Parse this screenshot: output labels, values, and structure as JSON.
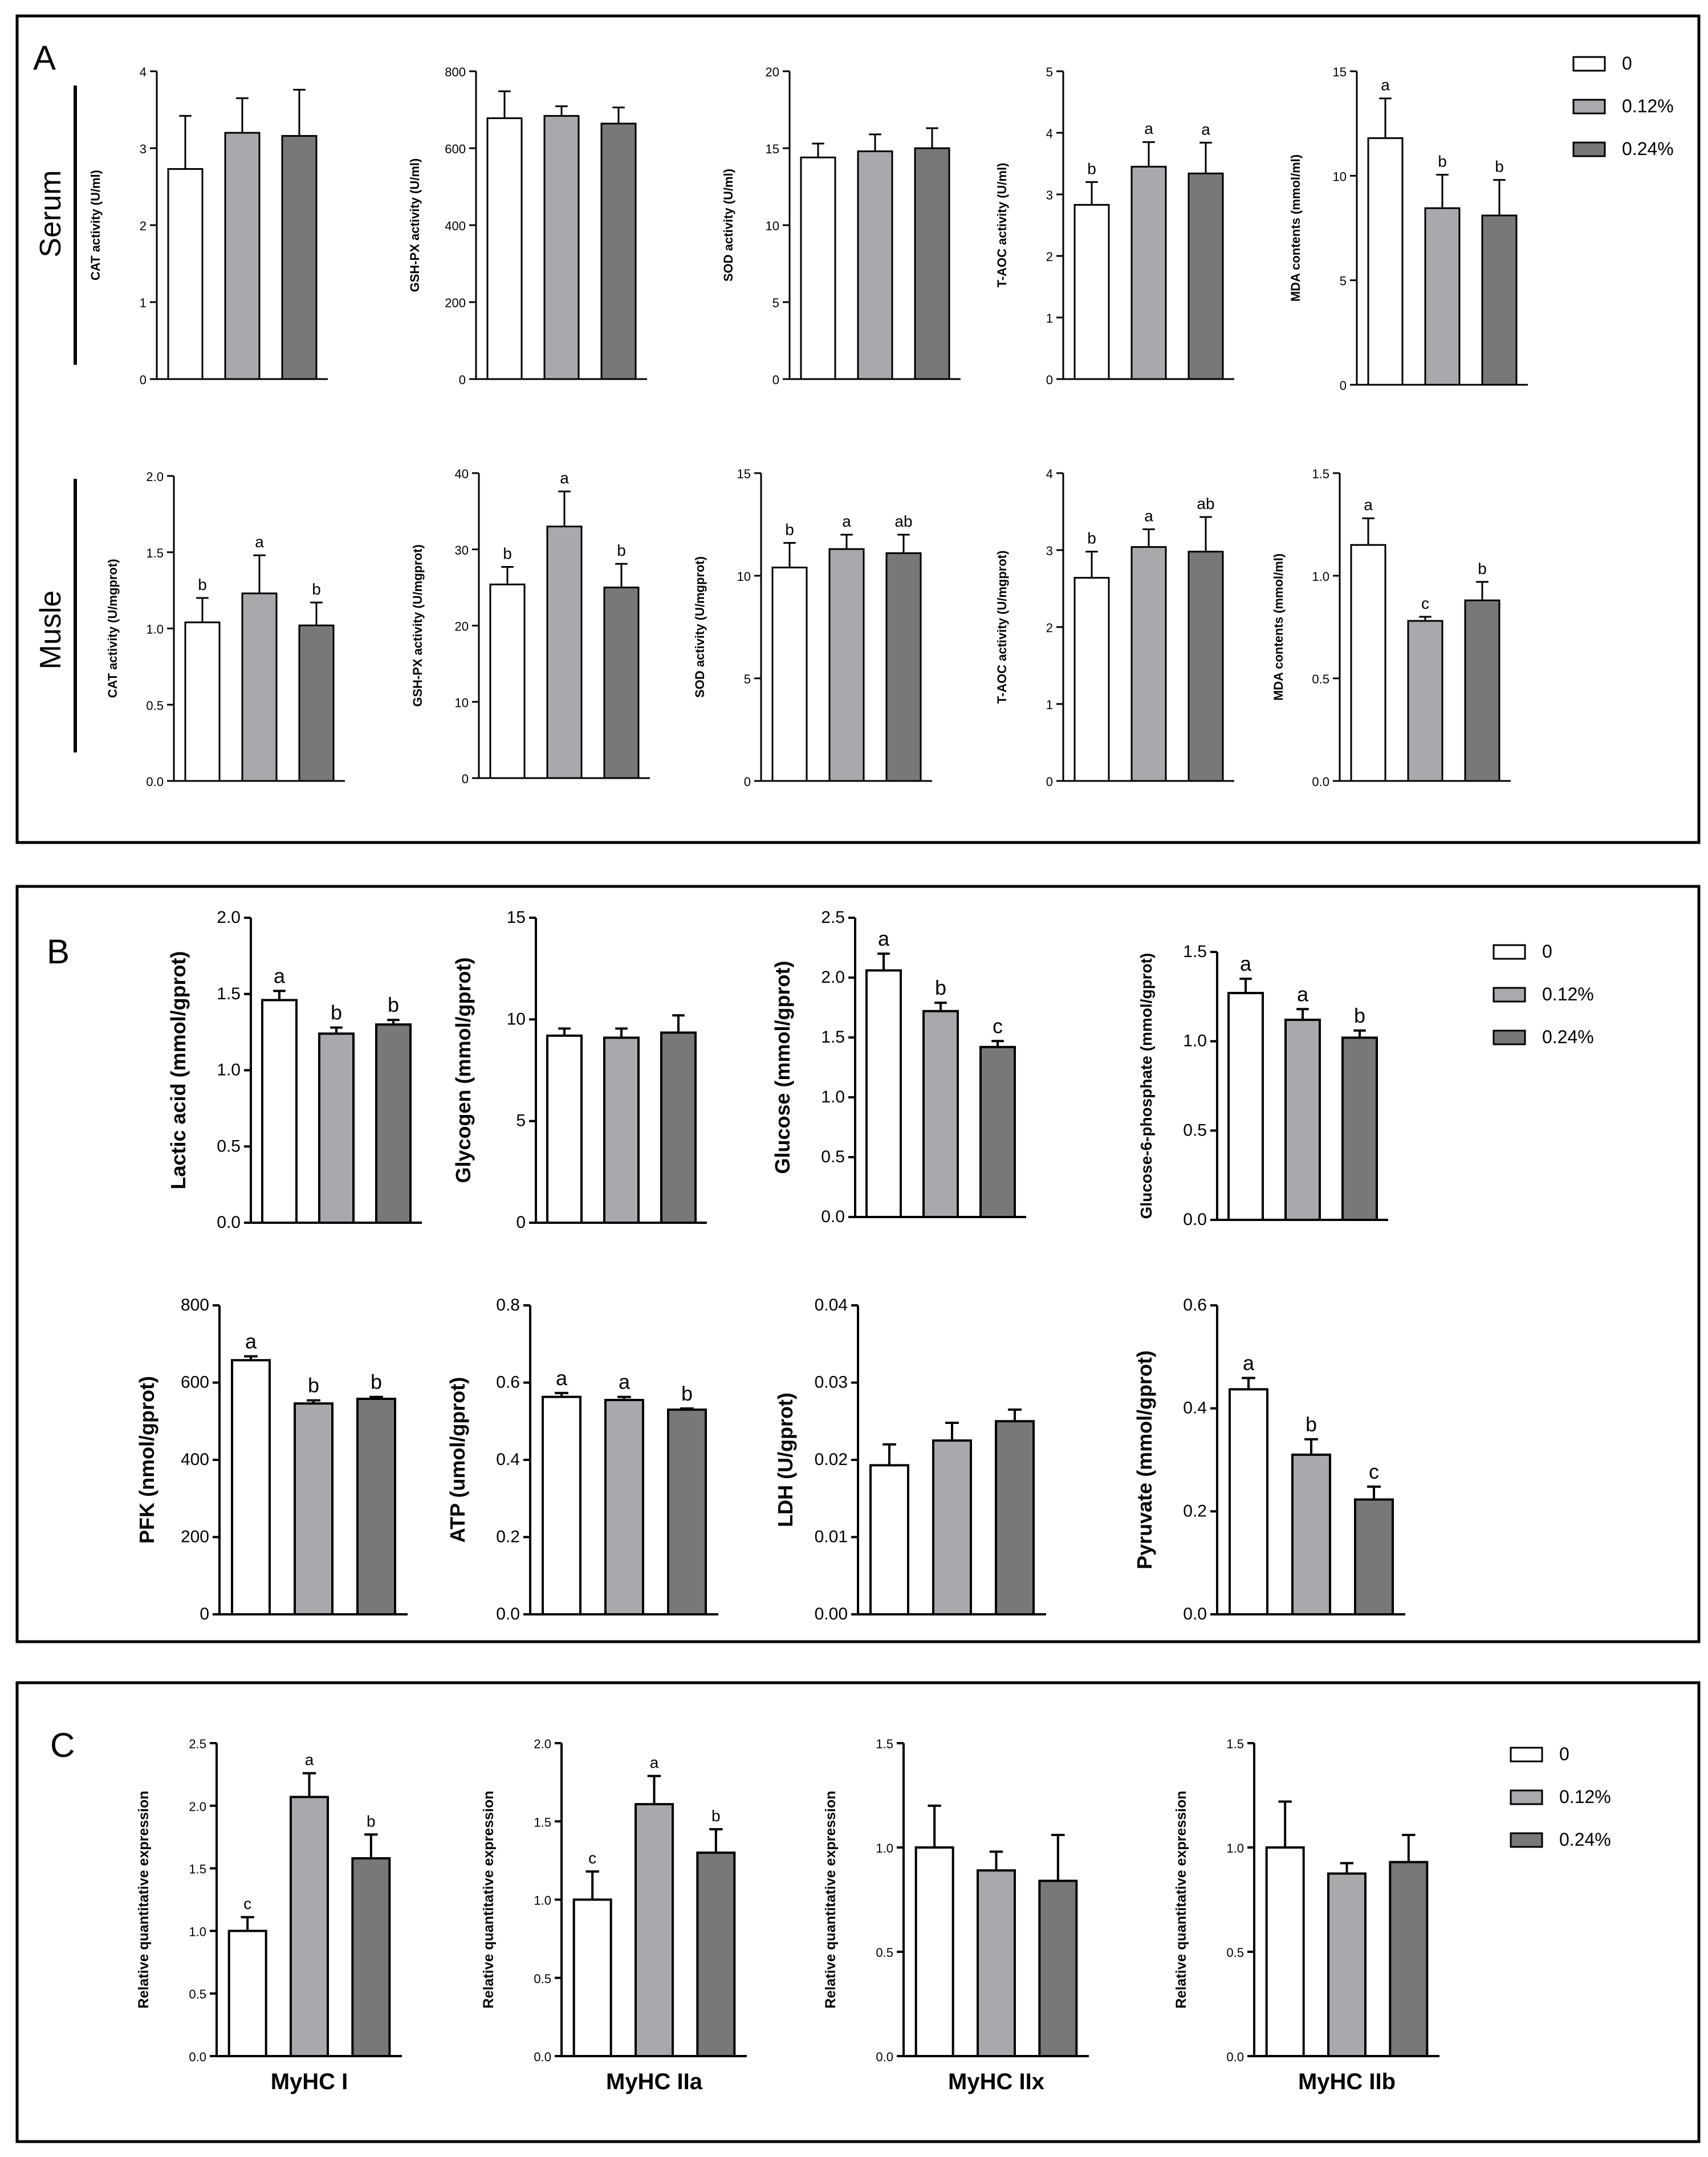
{
  "colors": {
    "g0": "#ffffff",
    "g012": "#a9a9ad",
    "g024": "#787878",
    "axis": "#000000"
  },
  "panels": {
    "A": {
      "letter": "A",
      "row_labels": [
        "Serum",
        "Musle"
      ]
    },
    "B": {
      "letter": "B"
    },
    "C": {
      "letter": "C"
    }
  },
  "legend": {
    "labels": [
      "0",
      "0.12%",
      "0.24%"
    ]
  },
  "chart_data": [
    {
      "id": "A-serum-CAT",
      "type": "bar",
      "ylabel": "CAT activity (U/ml)",
      "ylim": [
        0,
        4
      ],
      "ticks": [
        "0",
        "1",
        "2",
        "3",
        "4"
      ],
      "categories": [
        "0",
        "0.12%",
        "0.24%"
      ],
      "values": [
        2.73,
        3.2,
        3.16
      ],
      "errors": [
        0.69,
        0.45,
        0.6
      ],
      "letters": [
        "",
        "",
        ""
      ]
    },
    {
      "id": "A-serum-GSH",
      "type": "bar",
      "ylabel": "GSH-PX activity (U/ml)",
      "ylim": [
        0,
        800
      ],
      "ticks": [
        "0",
        "200",
        "400",
        "600",
        "800"
      ],
      "categories": [
        "0",
        "0.12%",
        "0.24%"
      ],
      "values": [
        678,
        684,
        664
      ],
      "errors": [
        70,
        25,
        42
      ],
      "letters": [
        "",
        "",
        ""
      ]
    },
    {
      "id": "A-serum-SOD",
      "type": "bar",
      "ylabel": "SOD activity (U/ml)",
      "ylim": [
        0,
        20
      ],
      "ticks": [
        "0",
        "5",
        "10",
        "15",
        "20"
      ],
      "categories": [
        "0",
        "0.12%",
        "0.24%"
      ],
      "values": [
        14.4,
        14.8,
        15.0
      ],
      "errors": [
        0.9,
        1.1,
        1.3
      ],
      "letters": [
        "",
        "",
        ""
      ]
    },
    {
      "id": "A-serum-TAOC",
      "type": "bar",
      "ylabel": "T-AOC activity (U/ml)",
      "ylim": [
        0,
        5
      ],
      "ticks": [
        "0",
        "1",
        "2",
        "3",
        "4",
        "5"
      ],
      "categories": [
        "0",
        "0.12%",
        "0.24%"
      ],
      "values": [
        2.83,
        3.45,
        3.34
      ],
      "errors": [
        0.37,
        0.4,
        0.5
      ],
      "letters": [
        "b",
        "a",
        "a"
      ]
    },
    {
      "id": "A-serum-MDA",
      "type": "bar",
      "ylabel": "MDA contents (mmol/ml)",
      "ylim": [
        0,
        15
      ],
      "ticks": [
        "0",
        "5",
        "10",
        "15"
      ],
      "categories": [
        "0",
        "0.12%",
        "0.24%"
      ],
      "values": [
        11.8,
        8.45,
        8.1
      ],
      "errors": [
        1.9,
        1.6,
        1.7
      ],
      "letters": [
        "a",
        "b",
        "b"
      ]
    },
    {
      "id": "A-muscle-CAT",
      "type": "bar",
      "ylabel": "CAT activity (U/mgprot)",
      "ylim": [
        0,
        2
      ],
      "ticks": [
        "0.0",
        "0.5",
        "1.0",
        "1.5",
        "2.0"
      ],
      "categories": [
        "0",
        "0.12%",
        "0.24%"
      ],
      "values": [
        1.04,
        1.23,
        1.02
      ],
      "errors": [
        0.16,
        0.25,
        0.15
      ],
      "letters": [
        "b",
        "a",
        "b"
      ]
    },
    {
      "id": "A-muscle-GSH",
      "type": "bar",
      "ylabel": "GSH-PX activity (U/mgprot)",
      "ylim": [
        0,
        40
      ],
      "ticks": [
        "0",
        "10",
        "20",
        "30",
        "40"
      ],
      "categories": [
        "0",
        "0.12%",
        "0.24%"
      ],
      "values": [
        25.4,
        33.0,
        25.0
      ],
      "errors": [
        2.3,
        4.6,
        3.1
      ],
      "letters": [
        "b",
        "a",
        "b"
      ]
    },
    {
      "id": "A-muscle-SOD",
      "type": "bar",
      "ylabel": "SOD activity (U/mgprot)",
      "ylim": [
        0,
        15
      ],
      "ticks": [
        "0",
        "5",
        "10",
        "15"
      ],
      "categories": [
        "0",
        "0.12%",
        "0.24%"
      ],
      "values": [
        10.4,
        11.3,
        11.1
      ],
      "errors": [
        1.2,
        0.7,
        0.9
      ],
      "letters": [
        "b",
        "a",
        "ab"
      ]
    },
    {
      "id": "A-muscle-TAOC",
      "type": "bar",
      "ylabel": "T-AOC activity (U/mgprot)",
      "ylim": [
        0,
        4
      ],
      "ticks": [
        "0",
        "1",
        "2",
        "3",
        "4"
      ],
      "categories": [
        "0",
        "0.12%",
        "0.24%"
      ],
      "values": [
        2.64,
        3.04,
        2.98
      ],
      "errors": [
        0.34,
        0.23,
        0.45
      ],
      "letters": [
        "b",
        "a",
        "ab"
      ]
    },
    {
      "id": "A-muscle-MDA",
      "type": "bar",
      "ylabel": "MDA contents (mmol/ml)",
      "ylim": [
        0,
        1.5
      ],
      "ticks": [
        "0.0",
        "0.5",
        "1.0",
        "1.5"
      ],
      "categories": [
        "0",
        "0.12%",
        "0.24%"
      ],
      "values": [
        1.15,
        0.78,
        0.88
      ],
      "errors": [
        0.13,
        0.02,
        0.09
      ],
      "letters": [
        "a",
        "c",
        "b"
      ]
    },
    {
      "id": "B-lactic",
      "type": "bar",
      "ylabel": "Lactic acid (mmol/gprot)",
      "ylim": [
        0,
        2
      ],
      "ticks": [
        "0.0",
        "0.5",
        "1.0",
        "1.5",
        "2.0"
      ],
      "categories": [
        "0",
        "0.12%",
        "0.24%"
      ],
      "values": [
        1.46,
        1.24,
        1.3
      ],
      "errors": [
        0.06,
        0.04,
        0.03
      ],
      "letters": [
        "a",
        "b",
        "b"
      ]
    },
    {
      "id": "B-glycogen",
      "type": "bar",
      "ylabel": "Glycogen (mmol/gprot)",
      "ylim": [
        0,
        15
      ],
      "ticks": [
        "0",
        "5",
        "10",
        "15"
      ],
      "categories": [
        "0",
        "0.12%",
        "0.24%"
      ],
      "values": [
        9.2,
        9.1,
        9.35
      ],
      "errors": [
        0.35,
        0.45,
        0.85
      ],
      "letters": [
        "",
        "",
        ""
      ]
    },
    {
      "id": "B-glucose",
      "type": "bar",
      "ylabel": "Glucose (mmol/gprot)",
      "ylim": [
        0,
        2.5
      ],
      "ticks": [
        "0.0",
        "0.5",
        "1.0",
        "1.5",
        "2.0",
        "2.5"
      ],
      "categories": [
        "0",
        "0.12%",
        "0.24%"
      ],
      "values": [
        2.06,
        1.72,
        1.42
      ],
      "errors": [
        0.14,
        0.07,
        0.05
      ],
      "letters": [
        "a",
        "b",
        "c"
      ]
    },
    {
      "id": "B-g6p",
      "type": "bar",
      "ylabel": "Glucose-6-phosphate (mmol/gprot)",
      "ylim": [
        0,
        1.5
      ],
      "ticks": [
        "0.0",
        "0.5",
        "1.0",
        "1.5"
      ],
      "categories": [
        "0",
        "0.12%",
        "0.24%"
      ],
      "values": [
        1.27,
        1.12,
        1.02
      ],
      "errors": [
        0.08,
        0.06,
        0.04
      ],
      "letters": [
        "a",
        "a",
        "b"
      ]
    },
    {
      "id": "B-pfk",
      "type": "bar",
      "ylabel": "PFK (nmol/gprot)",
      "ylim": [
        0,
        800
      ],
      "ticks": [
        "0",
        "200",
        "400",
        "600",
        "800"
      ],
      "categories": [
        "0",
        "0.12%",
        "0.24%"
      ],
      "values": [
        658,
        546,
        558
      ],
      "errors": [
        10,
        8,
        5
      ],
      "letters": [
        "a",
        "b",
        "b"
      ]
    },
    {
      "id": "B-atp",
      "type": "bar",
      "ylabel": "ATP (umol/gprot)",
      "ylim": [
        0,
        0.8
      ],
      "ticks": [
        "0.0",
        "0.2",
        "0.4",
        "0.6",
        "0.8"
      ],
      "categories": [
        "0",
        "0.12%",
        "0.24%"
      ],
      "values": [
        0.563,
        0.555,
        0.53
      ],
      "errors": [
        0.01,
        0.008,
        0.003
      ],
      "letters": [
        "a",
        "a",
        "b"
      ]
    },
    {
      "id": "B-ldh",
      "type": "bar",
      "ylabel": "LDH (U/gprot)",
      "ylim": [
        0,
        0.04
      ],
      "ticks": [
        "0.00",
        "0.01",
        "0.02",
        "0.03",
        "0.04"
      ],
      "categories": [
        "0",
        "0.12%",
        "0.24%"
      ],
      "values": [
        0.0193,
        0.0225,
        0.025
      ],
      "errors": [
        0.0027,
        0.0023,
        0.0015
      ],
      "letters": [
        "",
        "",
        ""
      ]
    },
    {
      "id": "B-pyruvate",
      "type": "bar",
      "ylabel": "Pyruvate (mmol/gprot)",
      "ylim": [
        0,
        0.6
      ],
      "ticks": [
        "0.0",
        "0.2",
        "0.4",
        "0.6"
      ],
      "categories": [
        "0",
        "0.12%",
        "0.24%"
      ],
      "values": [
        0.437,
        0.31,
        0.223
      ],
      "errors": [
        0.022,
        0.03,
        0.025
      ],
      "letters": [
        "a",
        "b",
        "c"
      ]
    },
    {
      "id": "C-myhc1",
      "type": "bar",
      "title": "MyHC I",
      "ylabel": "Relative quantitative expression",
      "ylim": [
        0,
        2.5
      ],
      "ticks": [
        "0.0",
        "0.5",
        "1.0",
        "1.5",
        "2.0",
        "2.5"
      ],
      "categories": [
        "0",
        "0.12%",
        "0.24%"
      ],
      "values": [
        1.0,
        2.07,
        1.58
      ],
      "errors": [
        0.11,
        0.19,
        0.19
      ],
      "letters": [
        "c",
        "a",
        "b"
      ]
    },
    {
      "id": "C-myhc2a",
      "type": "bar",
      "title": "MyHC IIa",
      "ylabel": "Relative quantitative expression",
      "ylim": [
        0,
        2
      ],
      "ticks": [
        "0.0",
        "0.5",
        "1.0",
        "1.5",
        "2.0"
      ],
      "categories": [
        "0",
        "0.12%",
        "0.24%"
      ],
      "values": [
        1.0,
        1.61,
        1.3
      ],
      "errors": [
        0.18,
        0.18,
        0.15
      ],
      "letters": [
        "c",
        "a",
        "b"
      ]
    },
    {
      "id": "C-myhc2x",
      "type": "bar",
      "title": "MyHC IIx",
      "ylabel": "Relative quantitative expression",
      "ylim": [
        0,
        1.5
      ],
      "ticks": [
        "0.0",
        "0.5",
        "1.0",
        "1.5"
      ],
      "categories": [
        "0",
        "0.12%",
        "0.24%"
      ],
      "values": [
        1.0,
        0.89,
        0.84
      ],
      "errors": [
        0.2,
        0.09,
        0.22
      ],
      "letters": [
        "",
        "",
        ""
      ]
    },
    {
      "id": "C-myhc2b",
      "type": "bar",
      "title": "MyHC IIb",
      "ylabel": "Relative quantitative expression",
      "ylim": [
        0,
        1.5
      ],
      "ticks": [
        "0.0",
        "0.5",
        "1.0",
        "1.5"
      ],
      "categories": [
        "0",
        "0.12%",
        "0.24%"
      ],
      "values": [
        1.0,
        0.875,
        0.93
      ],
      "errors": [
        0.22,
        0.05,
        0.13
      ],
      "letters": [
        "",
        "",
        ""
      ]
    }
  ]
}
